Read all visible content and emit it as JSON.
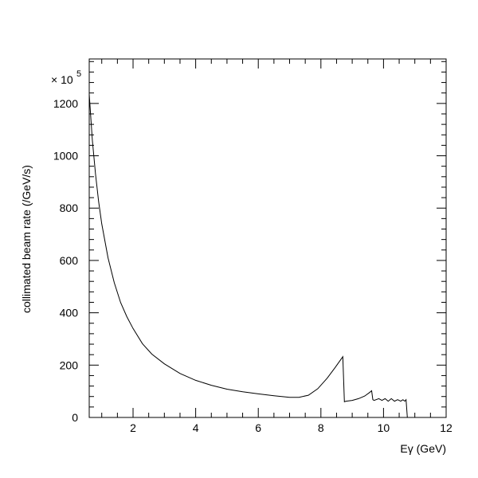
{
  "chart_data": {
    "type": "line",
    "title": "",
    "xlabel": "Eγ (GeV)",
    "ylabel": "collimated beam rate (/GeV/s)",
    "y_scale_factor": "× 10",
    "y_scale_exponent": "5",
    "xlim": [
      0.6,
      12
    ],
    "ylim": [
      0,
      1370
    ],
    "x_ticks": [
      2,
      4,
      6,
      8,
      10,
      12
    ],
    "x_tick_labels": [
      "2",
      "4",
      "6",
      "8",
      "10",
      "12"
    ],
    "y_ticks": [
      0,
      200,
      400,
      600,
      800,
      1000,
      1200
    ],
    "y_tick_labels": [
      "0",
      "200",
      "400",
      "600",
      "800",
      "1000",
      "1200"
    ],
    "grid": false,
    "legend": "none",
    "line_color": "#000000",
    "series": [
      {
        "x": [
          0.6,
          0.7,
          0.8,
          0.9,
          1.0,
          1.2,
          1.4,
          1.6,
          1.8,
          2.0,
          2.3,
          2.6,
          3.0,
          3.5,
          4.0,
          4.5,
          5.0,
          5.5,
          6.0,
          6.5,
          7.0,
          7.3,
          7.6,
          7.9,
          8.2,
          8.45,
          8.7,
          8.75,
          8.8,
          9.0,
          9.2,
          9.4,
          9.55,
          9.62,
          9.66,
          9.7,
          9.85,
          9.95,
          10.05,
          10.15,
          10.25,
          10.35,
          10.45,
          10.55,
          10.62,
          10.68,
          10.72,
          10.76
        ],
        "y": [
          1235,
          1060,
          930,
          825,
          740,
          610,
          515,
          440,
          385,
          340,
          282,
          242,
          205,
          168,
          142,
          123,
          108,
          98,
          90,
          83,
          77,
          77,
          85,
          110,
          150,
          190,
          232,
          60,
          62,
          65,
          72,
          82,
          95,
          102,
          68,
          65,
          72,
          65,
          72,
          62,
          72,
          62,
          68,
          62,
          68,
          62,
          68,
          0
        ]
      }
    ]
  }
}
